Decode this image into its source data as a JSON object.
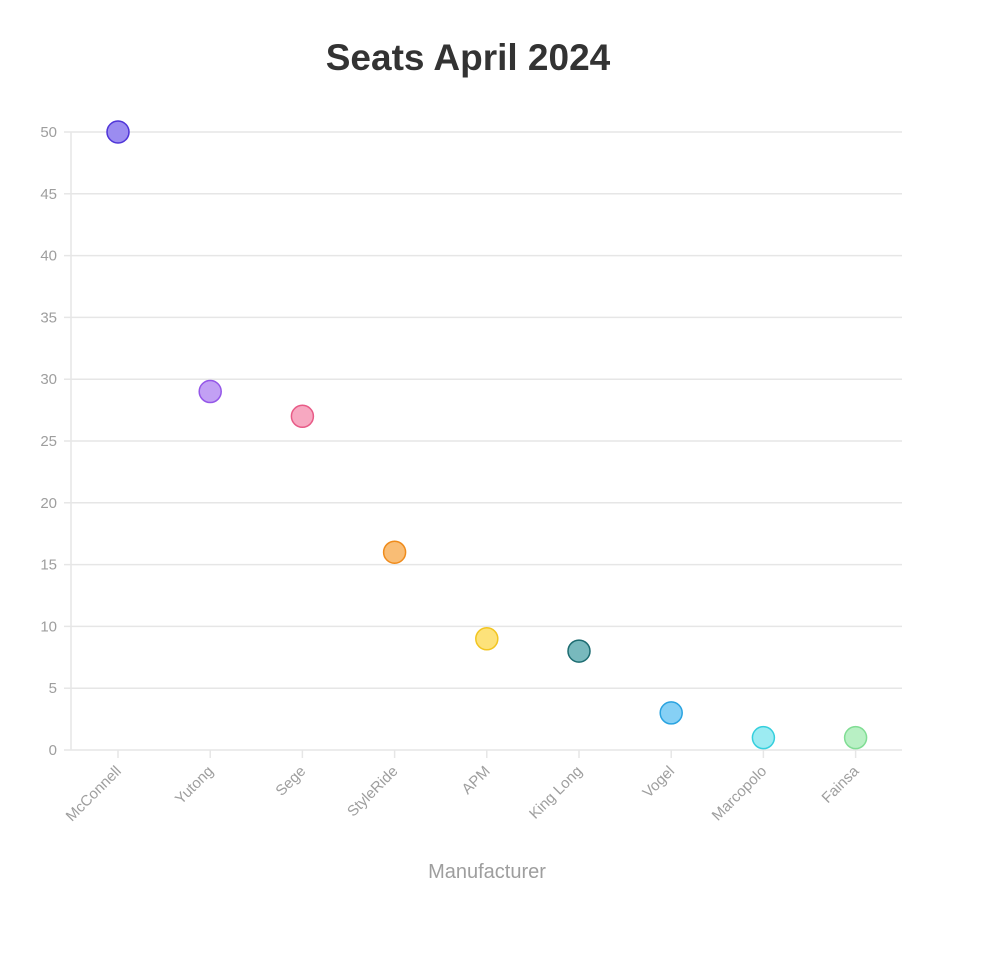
{
  "chart_data": {
    "type": "scatter",
    "title": "Seats April 2024",
    "xlabel": "Manufacturer",
    "ylabel": "",
    "ylim": [
      0,
      50
    ],
    "yticks": [
      0,
      5,
      10,
      15,
      20,
      25,
      30,
      35,
      40,
      45,
      50
    ],
    "grid": true,
    "categories": [
      "McConnell",
      "Yutong",
      "Sege",
      "StyleRide",
      "APM",
      "King Long",
      "Vogel",
      "Marcopolo",
      "Fainsa"
    ],
    "values": [
      50,
      29,
      27,
      16,
      9,
      8,
      3,
      1,
      1
    ],
    "colors": [
      {
        "fill": "#9b8cf0",
        "stroke": "#4f35d8"
      },
      {
        "fill": "#c2a0f4",
        "stroke": "#9457e8"
      },
      {
        "fill": "#f7a8c1",
        "stroke": "#e85b87"
      },
      {
        "fill": "#f9bd75",
        "stroke": "#ef8b1b"
      },
      {
        "fill": "#fde27a",
        "stroke": "#f2c521"
      },
      {
        "fill": "#78b9bd",
        "stroke": "#1d6c71"
      },
      {
        "fill": "#86d0f5",
        "stroke": "#2aa3e0"
      },
      {
        "fill": "#9cebf2",
        "stroke": "#35cfdd"
      },
      {
        "fill": "#b8f0c4",
        "stroke": "#80dd94"
      }
    ]
  }
}
